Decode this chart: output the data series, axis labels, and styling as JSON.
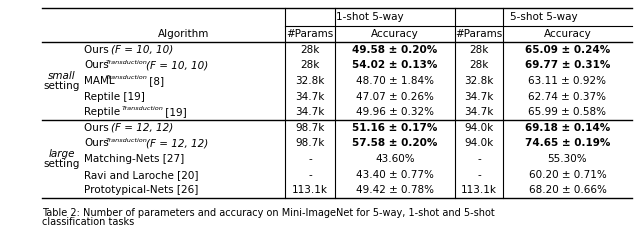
{
  "title": "Table 2: Number of parameters and accuracy on Mini-ImageNet for 5-way, 1-shot and 5-shot\nclassification tasks",
  "figsize": [
    6.4,
    2.47
  ],
  "dpi": 100,
  "rows": [
    {
      "group": "small",
      "algorithm": "Ours (F = 10, 10)",
      "p1": "28k",
      "a1": "49.58 ± 0.20%",
      "a1b": true,
      "p2": "28k",
      "a2": "65.09 ± 0.24%",
      "a2b": true
    },
    {
      "group": "",
      "algorithm": "Ours^T(F = 10, 10)",
      "p1": "28k",
      "a1": "54.02 ± 0.13%",
      "a1b": true,
      "p2": "28k",
      "a2": "69.77 ± 0.31%",
      "a2b": true
    },
    {
      "group": "",
      "algorithm": "MAML^T [8]",
      "p1": "32.8k",
      "a1": "48.70 ± 1.84%",
      "a1b": false,
      "p2": "32.8k",
      "a2": "63.11 ± 0.92%",
      "a2b": false
    },
    {
      "group": "",
      "algorithm": "Reptile [19]",
      "p1": "34.7k",
      "a1": "47.07 ± 0.26%",
      "a1b": false,
      "p2": "34.7k",
      "a2": "62.74 ± 0.37%",
      "a2b": false
    },
    {
      "group": "",
      "algorithm": "Reptile^T [19]",
      "p1": "34.7k",
      "a1": "49.96 ± 0.32%",
      "a1b": false,
      "p2": "34.7k",
      "a2": "65.99 ± 0.58%",
      "a2b": false
    },
    {
      "group": "large",
      "algorithm": "Ours (F = 12, 12)",
      "p1": "98.7k",
      "a1": "51.16 ± 0.17%",
      "a1b": true,
      "p2": "94.0k",
      "a2": "69.18 ± 0.14%",
      "a2b": true
    },
    {
      "group": "",
      "algorithm": "Ours^T(F = 12, 12)",
      "p1": "98.7k",
      "a1": "57.58 ± 0.20%",
      "a1b": true,
      "p2": "94.0k",
      "a2": "74.65 ± 0.19%",
      "a2b": true
    },
    {
      "group": "",
      "algorithm": "Matching-Nets [27]",
      "p1": "-",
      "a1": "43.60%",
      "a1b": false,
      "p2": "-",
      "a2": "55.30%",
      "a2b": false
    },
    {
      "group": "",
      "algorithm": "Ravi and Laroche [20]",
      "p1": "-",
      "a1": "43.40 ± 0.77%",
      "a1b": false,
      "p2": "-",
      "a2": "60.20 ± 0.71%",
      "a2b": false
    },
    {
      "group": "",
      "algorithm": "Prototypical-Nets [26]",
      "p1": "113.1k",
      "a1": "49.42 ± 0.78%",
      "a1b": false,
      "p2": "113.1k",
      "a2": "68.20 ± 0.66%",
      "a2b": false
    }
  ]
}
